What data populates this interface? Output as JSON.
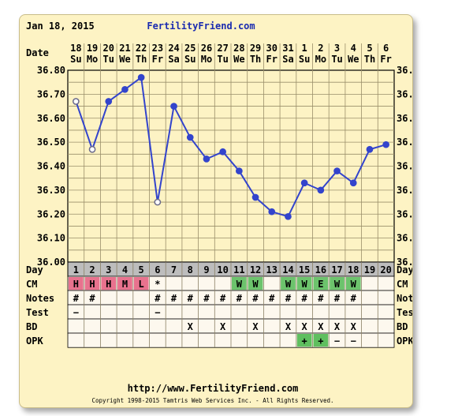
{
  "header": {
    "start_date": "Jan 18, 2015",
    "site_title": "FertilityFriend.com"
  },
  "footer": {
    "url": "http://www.FertilityFriend.com",
    "copyright": "Copyright 1998-2015 Tamtris Web Services Inc. - All Rights Reserved."
  },
  "colors": {
    "line": "#3344cc",
    "grid": "#9a8f6a",
    "plot_bg": "#fdf3c4",
    "day_row_bg": "#bdbdbd",
    "cm_pink": "#e8728e",
    "cm_green": "#6cc36c",
    "opk_green": "#5fbf5f",
    "card_bg": "#fdf3c4"
  },
  "chart_data": {
    "type": "line",
    "ylabel_left": "36.80",
    "row_label_date": "Date",
    "row_label_day": "Day",
    "ylim": [
      36.0,
      36.8
    ],
    "yticks": [
      "36.80",
      "36.70",
      "36.60",
      "36.50",
      "36.40",
      "36.30",
      "36.20",
      "36.10",
      "36.00"
    ],
    "dates": [
      "18",
      "19",
      "20",
      "21",
      "22",
      "23",
      "24",
      "25",
      "26",
      "27",
      "28",
      "29",
      "30",
      "31",
      "1",
      "2",
      "3",
      "4",
      "5",
      "6"
    ],
    "weekdays": [
      "Su",
      "Mo",
      "Tu",
      "We",
      "Th",
      "Fr",
      "Sa",
      "Su",
      "Mo",
      "Tu",
      "We",
      "Th",
      "Fr",
      "Sa",
      "Su",
      "Mo",
      "Tu",
      "We",
      "Th",
      "Fr"
    ],
    "days": [
      "1",
      "2",
      "3",
      "4",
      "5",
      "6",
      "7",
      "8",
      "9",
      "10",
      "11",
      "12",
      "13",
      "14",
      "15",
      "16",
      "17",
      "18",
      "19",
      "20"
    ],
    "temps": [
      36.67,
      36.47,
      36.67,
      36.72,
      36.77,
      36.25,
      36.65,
      36.52,
      36.43,
      36.46,
      36.38,
      36.27,
      36.21,
      36.19,
      36.33,
      36.3,
      36.38,
      36.33,
      36.47,
      36.49
    ],
    "open_points": [
      1,
      2,
      6
    ],
    "rows": {
      "cm": {
        "label": "CM",
        "values": [
          "H",
          "H",
          "H",
          "M",
          "L",
          "*",
          "",
          "",
          "",
          "",
          "W",
          "W",
          "",
          "W",
          "W",
          "E",
          "W",
          "W",
          "",
          ""
        ],
        "bg": [
          "pink",
          "pink",
          "pink",
          "pink",
          "pink",
          "",
          "",
          "",
          "",
          "",
          "green",
          "green",
          "",
          "green",
          "green",
          "green",
          "green",
          "green",
          "",
          ""
        ]
      },
      "notes": {
        "label": "Notes",
        "values": [
          "#",
          "#",
          "",
          "",
          "",
          "#",
          "#",
          "#",
          "#",
          "#",
          "#",
          "#",
          "#",
          "#",
          "#",
          "#",
          "#",
          "#",
          "",
          ""
        ]
      },
      "test": {
        "label": "Test",
        "values": [
          "−",
          "",
          "",
          "",
          "",
          "−",
          "",
          "",
          "",
          "",
          "",
          "",
          "",
          "",
          "",
          "",
          "",
          "",
          "",
          ""
        ]
      },
      "bd": {
        "label": "BD",
        "values": [
          "",
          "",
          "",
          "",
          "",
          "",
          "",
          "X",
          "",
          "X",
          "",
          "X",
          "",
          "X",
          "X",
          "X",
          "X",
          "X",
          "",
          ""
        ]
      },
      "opk": {
        "label": "OPK",
        "values": [
          "",
          "",
          "",
          "",
          "",
          "",
          "",
          "",
          "",
          "",
          "",
          "",
          "",
          "",
          "+",
          "+",
          "−",
          "−",
          "",
          ""
        ],
        "bg": [
          "",
          "",
          "",
          "",
          "",
          "",
          "",
          "",
          "",
          "",
          "",
          "",
          "",
          "",
          "green",
          "green",
          "",
          "",
          "",
          ""
        ]
      }
    }
  }
}
